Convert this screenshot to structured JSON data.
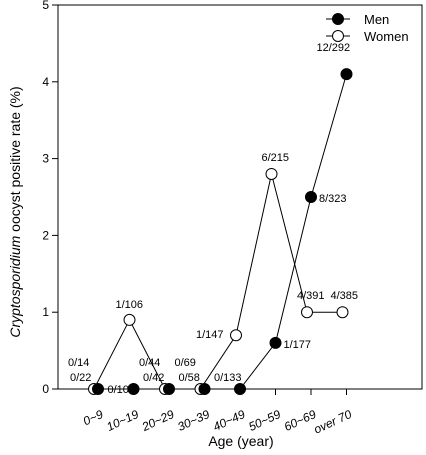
{
  "chart_data": {
    "type": "line",
    "title": "",
    "xlabel": "Age (year)",
    "ylabel_parts": [
      {
        "text": "Cryptosporidium",
        "italic": true
      },
      {
        "text": " oocyst positive rate (%)",
        "italic": false
      }
    ],
    "ylim": [
      0,
      5
    ],
    "yticks": [
      0,
      1,
      2,
      3,
      4,
      5
    ],
    "categories": [
      "0~9",
      "10~19",
      "20~29",
      "30~39",
      "40~49",
      "50~59",
      "60~69",
      "over 70"
    ],
    "grid": false,
    "legend": "top-right",
    "series": [
      {
        "name": "Men",
        "marker": "filled",
        "color": "#000000",
        "values": [
          0,
          0,
          0,
          0,
          0,
          0.6,
          2.5,
          4.1
        ],
        "labels": [
          "0/22",
          "0/104",
          "0/42",
          "0/58",
          "0/133",
          "1/177",
          "8/323",
          "12/292"
        ]
      },
      {
        "name": "Women",
        "marker": "open",
        "color": "#000000",
        "values": [
          0,
          0.9,
          0,
          0,
          0.7,
          2.8,
          1.0,
          1.0
        ],
        "labels": [
          "0/14",
          "1/106",
          "0/44",
          "0/69",
          "1/147",
          "6/215",
          "4/391",
          "4/385"
        ]
      }
    ]
  }
}
